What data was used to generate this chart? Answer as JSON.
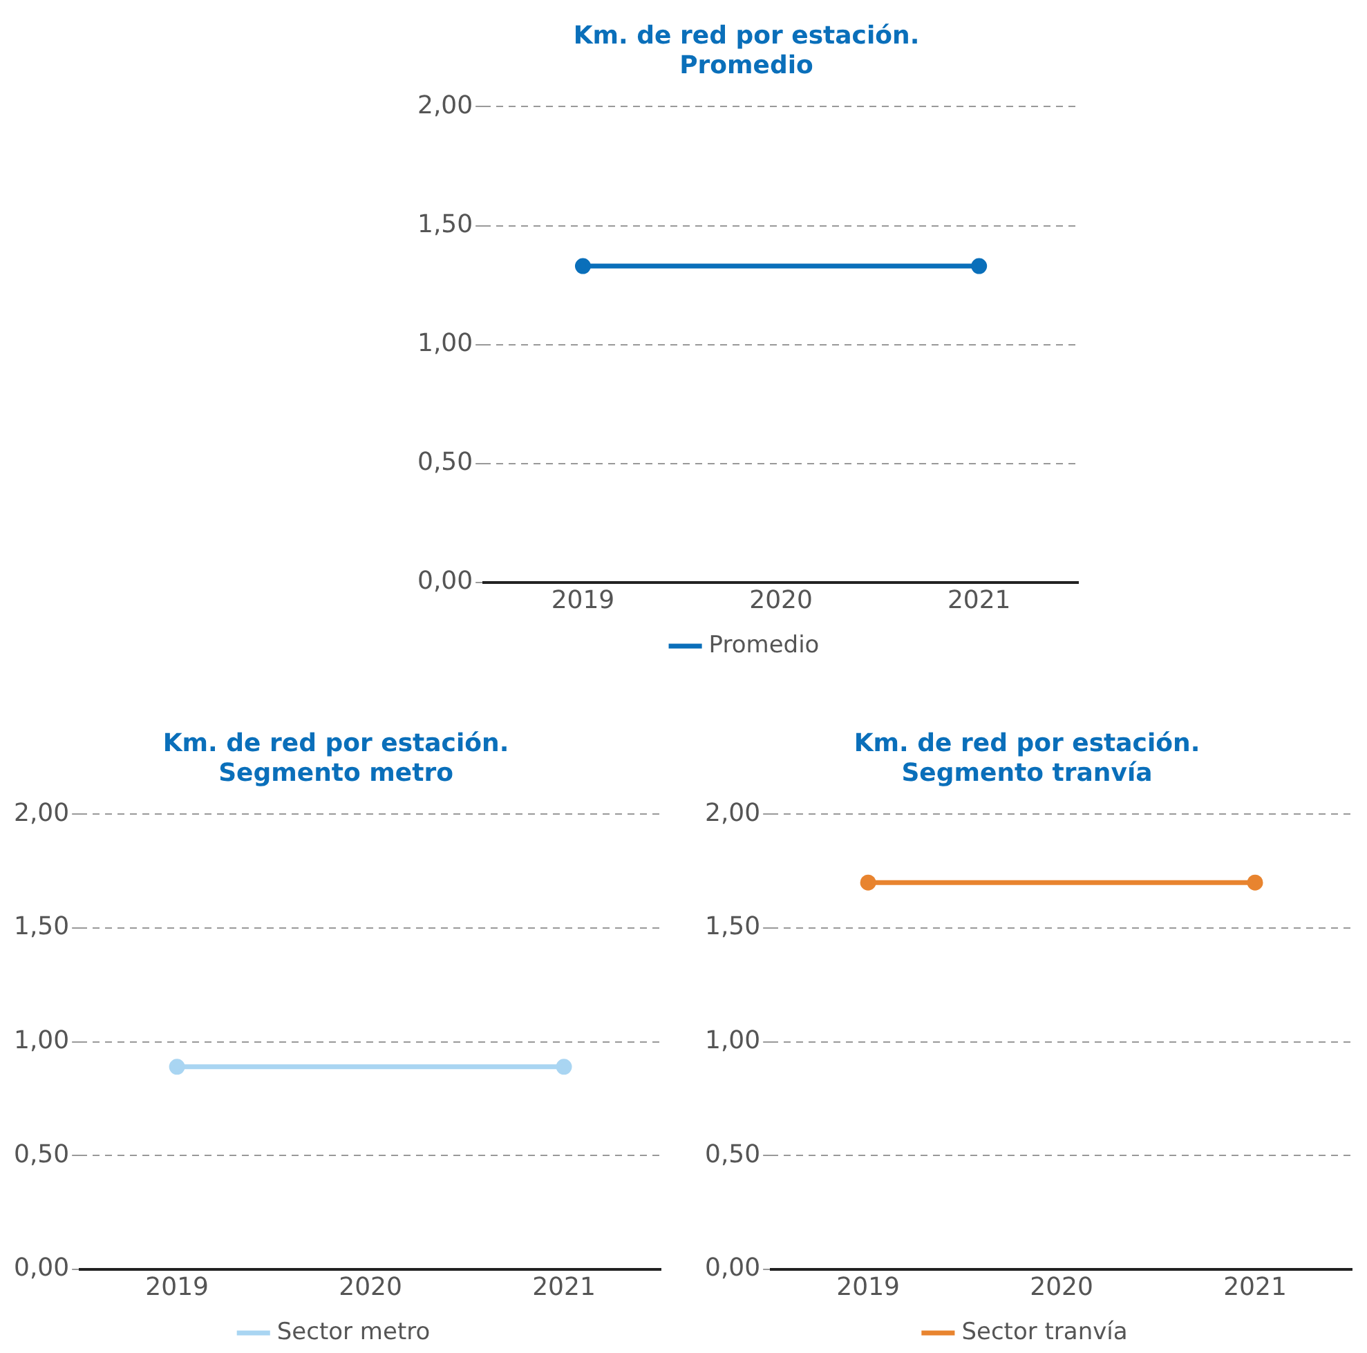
{
  "chart_data": [
    {
      "type": "line",
      "title": "Km. de red por estación.\nPromedio",
      "categories": [
        "2019",
        "2020",
        "2021"
      ],
      "ylim": [
        0,
        2
      ],
      "yticks": [
        {
          "value": 0,
          "label": "0,00"
        },
        {
          "value": 0.5,
          "label": "0,50"
        },
        {
          "value": 1,
          "label": "1,00"
        },
        {
          "value": 1.5,
          "label": "1,50"
        },
        {
          "value": 2,
          "label": "2,00"
        }
      ],
      "grid": "y",
      "legend": "bottom",
      "marker": "circle",
      "line_style": "solid",
      "series": [
        {
          "name": "Promedio",
          "color": "#0a6fba",
          "values": [
            1.33,
            null,
            1.33
          ]
        }
      ]
    },
    {
      "type": "line",
      "title": "Km. de red por estación.\nSegmento metro",
      "categories": [
        "2019",
        "2020",
        "2021"
      ],
      "ylim": [
        0,
        2
      ],
      "yticks": [
        {
          "value": 0,
          "label": "0,00"
        },
        {
          "value": 0.5,
          "label": "0,50"
        },
        {
          "value": 1,
          "label": "1,00"
        },
        {
          "value": 1.5,
          "label": "1,50"
        },
        {
          "value": 2,
          "label": "2,00"
        }
      ],
      "grid": "y",
      "legend": "bottom",
      "marker": "circle",
      "line_style": "solid",
      "series": [
        {
          "name": "Sector metro",
          "color": "#a9d5f2",
          "values": [
            0.89,
            null,
            0.89
          ]
        }
      ]
    },
    {
      "type": "line",
      "title": "Km. de red por estación.\nSegmento tranvía",
      "categories": [
        "2019",
        "2020",
        "2021"
      ],
      "ylim": [
        0,
        2
      ],
      "yticks": [
        {
          "value": 0,
          "label": "0,00"
        },
        {
          "value": 0.5,
          "label": "0,50"
        },
        {
          "value": 1,
          "label": "1,00"
        },
        {
          "value": 1.5,
          "label": "1,50"
        },
        {
          "value": 2,
          "label": "2,00"
        }
      ],
      "grid": "y",
      "legend": "bottom",
      "marker": "circle",
      "line_style": "solid",
      "series": [
        {
          "name": "Sector tranvía",
          "color": "#e8842f",
          "values": [
            1.7,
            null,
            1.7
          ]
        }
      ]
    }
  ]
}
